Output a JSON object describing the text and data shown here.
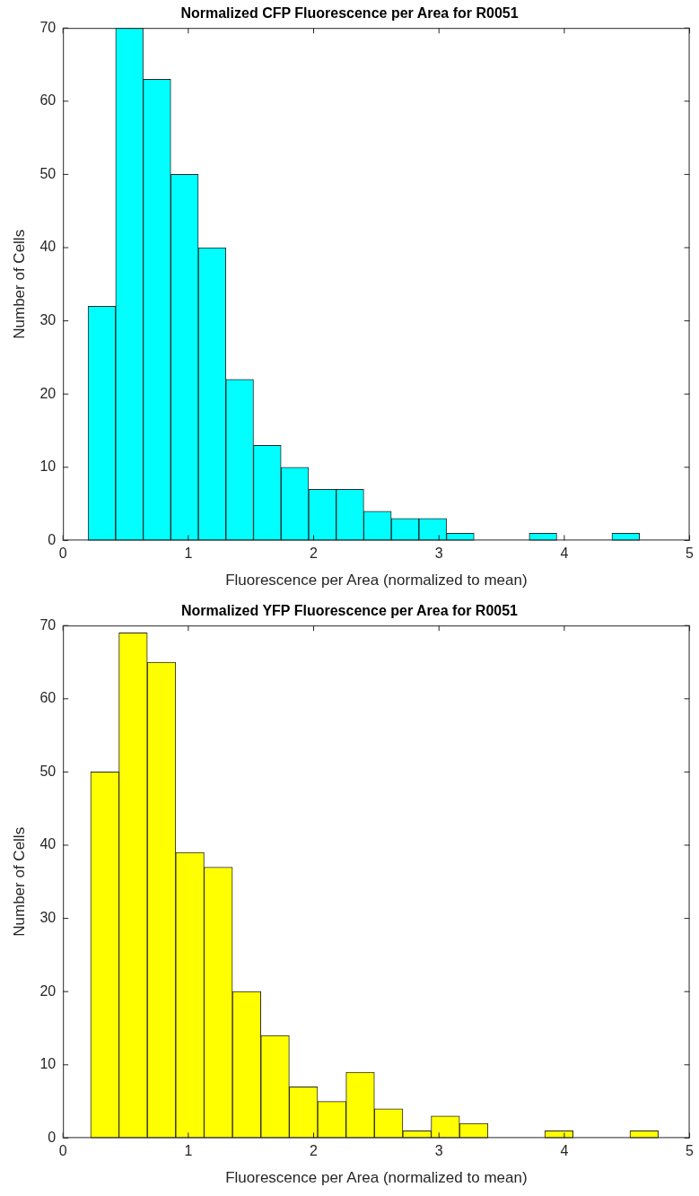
{
  "chart_data": [
    {
      "type": "histogram",
      "title": "Normalized CFP Fluorescence per Area for R0051",
      "xlabel": "Fluorescence per Area (normalized to mean)",
      "ylabel": "Number of Cells",
      "color": "#00ffff",
      "bins": [
        0.2,
        0.42,
        0.64,
        0.86,
        1.08,
        1.3,
        1.52,
        1.74,
        1.96,
        2.18,
        2.4,
        2.62,
        2.84,
        3.06,
        3.28,
        3.5,
        3.72,
        3.94,
        4.16,
        4.38,
        4.6
      ],
      "values": [
        32,
        70,
        63,
        50,
        40,
        22,
        13,
        10,
        7,
        7,
        4,
        3,
        3,
        1,
        0,
        0,
        1,
        0,
        0,
        1
      ],
      "xlim": [
        0,
        5
      ],
      "xticks": [
        0,
        1,
        2,
        3,
        4,
        5
      ],
      "ylim": [
        0,
        70
      ],
      "yticks": [
        0,
        10,
        20,
        30,
        40,
        50,
        60,
        70
      ]
    },
    {
      "type": "histogram",
      "title": "Normalized YFP Fluorescence per Area for R0051",
      "xlabel": "Fluorescence per Area (normalized to mean)",
      "ylabel": "Number of Cells",
      "color": "#ffff00",
      "bins": [
        0.22,
        0.4465,
        0.673,
        0.8995,
        1.126,
        1.3525,
        1.579,
        1.8055,
        2.032,
        2.2585,
        2.485,
        2.7115,
        2.938,
        3.1645,
        3.391,
        3.6175,
        3.844,
        4.0705,
        4.297,
        4.5235,
        4.75
      ],
      "values": [
        50,
        69,
        65,
        39,
        37,
        20,
        14,
        7,
        5,
        9,
        4,
        1,
        3,
        2,
        0,
        0,
        1,
        0,
        0,
        1
      ],
      "xlim": [
        0,
        5
      ],
      "xticks": [
        0,
        1,
        2,
        3,
        4,
        5
      ],
      "ylim": [
        0,
        70
      ],
      "yticks": [
        0,
        10,
        20,
        30,
        40,
        50,
        60,
        70
      ]
    }
  ]
}
